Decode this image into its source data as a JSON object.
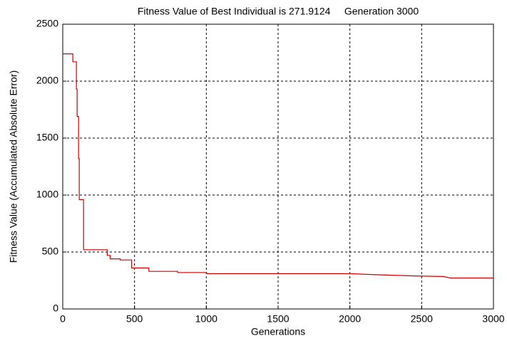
{
  "chart_data": {
    "type": "line",
    "title": "Fitness Value of Best Individual is 271.9124     Generation 3000",
    "x_label": "Generations",
    "y_label": "Fitness Value (Accumulated Absolute Error)",
    "x": [
      0,
      70,
      70,
      95,
      95,
      100,
      100,
      110,
      110,
      115,
      115,
      145,
      145,
      310,
      310,
      330,
      330,
      400,
      400,
      480,
      480,
      600,
      600,
      800,
      800,
      1000,
      1000,
      2000,
      2200,
      2450,
      2650,
      2700,
      3000
    ],
    "values": [
      2240,
      2240,
      2170,
      2170,
      1930,
      1930,
      1690,
      1690,
      1320,
      1320,
      960,
      960,
      520,
      520,
      470,
      470,
      440,
      440,
      430,
      430,
      360,
      360,
      330,
      330,
      320,
      320,
      310,
      310,
      300,
      290,
      285,
      272,
      272
    ],
    "color": "#d40000",
    "xlim": [
      0,
      3000
    ],
    "xticks": [
      0,
      500,
      1000,
      1500,
      2000,
      2500,
      3000
    ],
    "ylim": [
      0,
      2500
    ],
    "yticks": [
      0,
      500,
      1000,
      1500,
      2000,
      2500
    ],
    "grid": true
  }
}
